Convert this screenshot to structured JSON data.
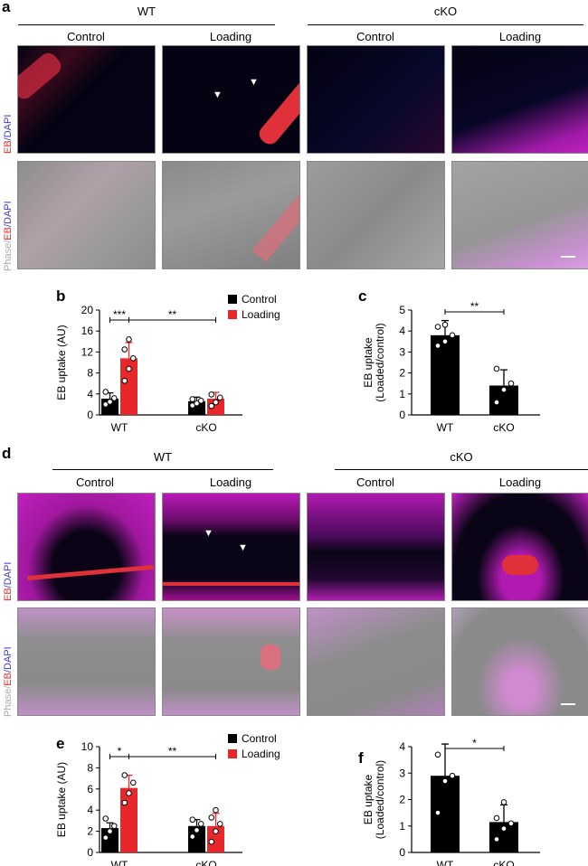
{
  "panels": {
    "a": "a",
    "b": "b",
    "c": "c",
    "d": "d",
    "e": "e",
    "f": "f"
  },
  "groups": {
    "wt": "WT",
    "cko": "cKO"
  },
  "conditions": {
    "control": "Control",
    "loading": "Loading"
  },
  "row_labels": {
    "fluor": [
      "EB",
      "/DAPI"
    ],
    "phase": [
      "Phase",
      "/",
      "EB",
      "/DAPI"
    ]
  },
  "colors": {
    "eb": "#e8272a",
    "dapi": "#3a3ad6",
    "phase": "#aaaaaa",
    "control_bar": "#000000",
    "loading_bar": "#e8272a"
  },
  "chart_data": [
    {
      "type": "bar",
      "panel": "b",
      "categories": [
        "WT",
        "cKO"
      ],
      "ylabel": "EB uptake (AU)",
      "ylim": [
        0,
        20
      ],
      "yticks": [
        0,
        4,
        8,
        12,
        16,
        20
      ],
      "series": [
        {
          "name": "Control",
          "values": [
            3.1,
            2.6
          ],
          "errors": [
            1.1,
            0.8
          ],
          "points": [
            [
              2.0,
              2.5,
              3.2,
              4.4
            ],
            [
              1.8,
              2.2,
              2.7,
              3.0
            ]
          ]
        },
        {
          "name": "Loading",
          "values": [
            10.8,
            3.1
          ],
          "errors": [
            3.0,
            1.2
          ],
          "points": [
            [
              6.5,
              8.8,
              10.8,
              12.5,
              14.4
            ],
            [
              1.7,
              2.4,
              3.3,
              3.9
            ]
          ]
        }
      ],
      "significance": [
        {
          "label": "***",
          "from": "WT Control",
          "to": "WT Loading"
        },
        {
          "label": "**",
          "from": "WT Loading",
          "to": "cKO Loading"
        }
      ]
    },
    {
      "type": "bar",
      "panel": "c",
      "categories": [
        "WT",
        "cKO"
      ],
      "ylabel": [
        "EB uptake",
        "(Loaded/control)"
      ],
      "ylim": [
        0,
        5
      ],
      "yticks": [
        0,
        1,
        2,
        3,
        4,
        5
      ],
      "values": [
        3.8,
        1.4
      ],
      "errors": [
        0.7,
        0.75
      ],
      "points": [
        [
          3.3,
          3.5,
          3.8,
          4.2,
          4.3
        ],
        [
          0.6,
          1.2,
          1.5,
          2.2
        ]
      ],
      "significance": [
        {
          "label": "**",
          "from": "WT",
          "to": "cKO"
        }
      ]
    },
    {
      "type": "bar",
      "panel": "e",
      "categories": [
        "WT",
        "cKO"
      ],
      "ylabel": "EB uptake (AU)",
      "ylim": [
        0,
        10
      ],
      "yticks": [
        0,
        2,
        4,
        6,
        8,
        10
      ],
      "series": [
        {
          "name": "Control",
          "values": [
            2.3,
            2.5
          ],
          "errors": [
            0.5,
            0.6
          ],
          "points": [
            [
              1.4,
              2.0,
              2.5,
              3.2
            ],
            [
              1.5,
              2.1,
              2.7,
              3.1
            ]
          ]
        },
        {
          "name": "Loading",
          "values": [
            6.1,
            2.5
          ],
          "errors": [
            1.2,
            1.2
          ],
          "points": [
            [
              4.7,
              5.6,
              6.6,
              7.3
            ],
            [
              1.0,
              2.0,
              2.7,
              3.3,
              4.0
            ]
          ]
        }
      ],
      "significance": [
        {
          "label": "*",
          "from": "WT Control",
          "to": "WT Loading"
        },
        {
          "label": "**",
          "from": "WT Loading",
          "to": "cKO Loading"
        }
      ]
    },
    {
      "type": "bar",
      "panel": "f",
      "categories": [
        "WT",
        "cKO"
      ],
      "ylabel": [
        "EB uptake",
        "(Loaded/control)"
      ],
      "ylim": [
        0,
        4
      ],
      "yticks": [
        0,
        1,
        2,
        3,
        4
      ],
      "values": [
        2.9,
        1.15
      ],
      "errors": [
        1.2,
        0.65
      ],
      "points": [
        [
          1.5,
          2.7,
          2.9,
          3.7
        ],
        [
          0.5,
          0.9,
          1.1,
          1.3,
          1.9
        ]
      ],
      "significance": [
        {
          "label": "*",
          "from": "WT",
          "to": "cKO"
        }
      ]
    }
  ]
}
